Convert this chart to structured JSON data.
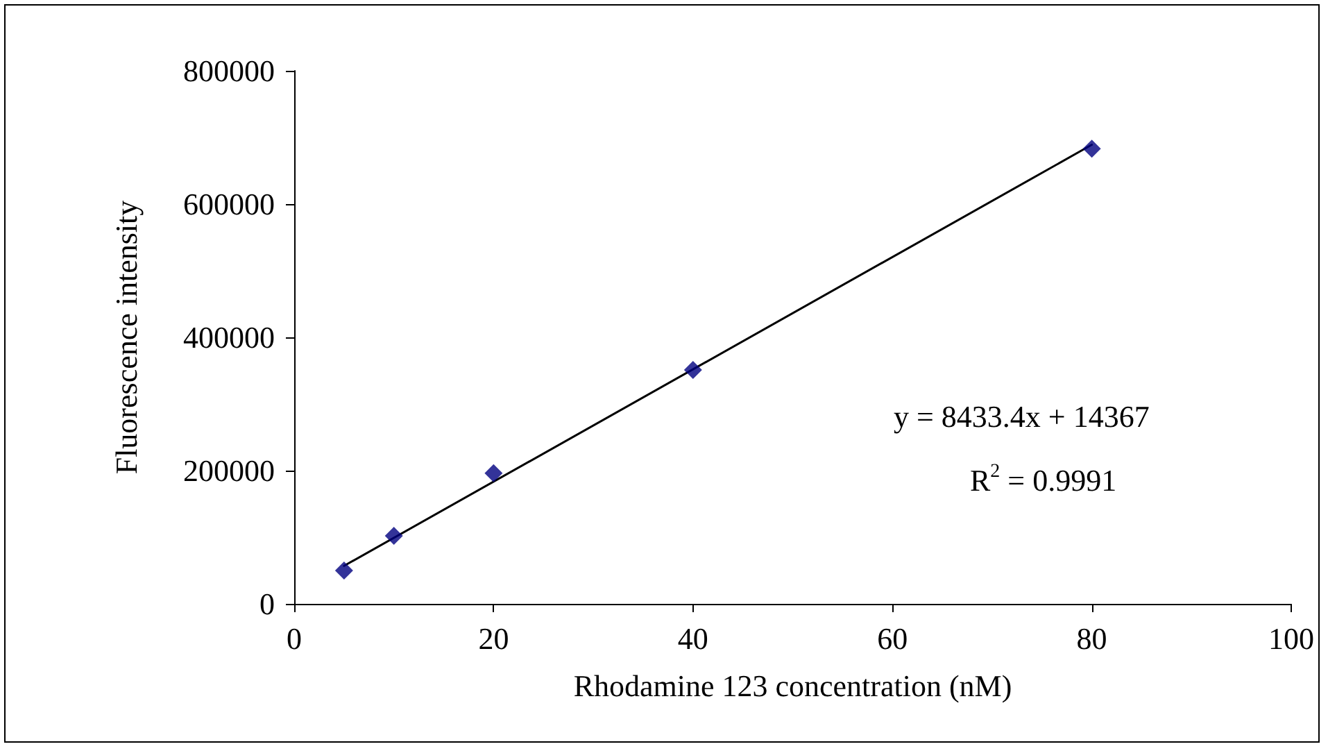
{
  "chart_data": {
    "type": "scatter",
    "xlabel": "Rhodamine 123 concentration (nM)",
    "ylabel": "Fluorescence intensity",
    "xlim": [
      0,
      100
    ],
    "xticks": [
      0,
      20,
      40,
      60,
      80,
      100
    ],
    "ylim": [
      0,
      800000
    ],
    "yticks": [
      0,
      200000,
      400000,
      600000,
      800000
    ],
    "grid": false,
    "series": [
      {
        "color": "#000080",
        "marker": "diamond",
        "x": [
          5,
          10,
          20,
          40,
          80
        ],
        "values": [
          50000,
          102000,
          196000,
          351000,
          683000
        ]
      },
      {
        "type": "line",
        "color": "#000000",
        "marker": "none",
        "x": [
          5,
          80
        ],
        "values": [
          57000,
          689000
        ]
      }
    ],
    "annotations": [
      "y = 8433.4x + 14367",
      "R$^{2}$ = 0.9991"
    ]
  }
}
